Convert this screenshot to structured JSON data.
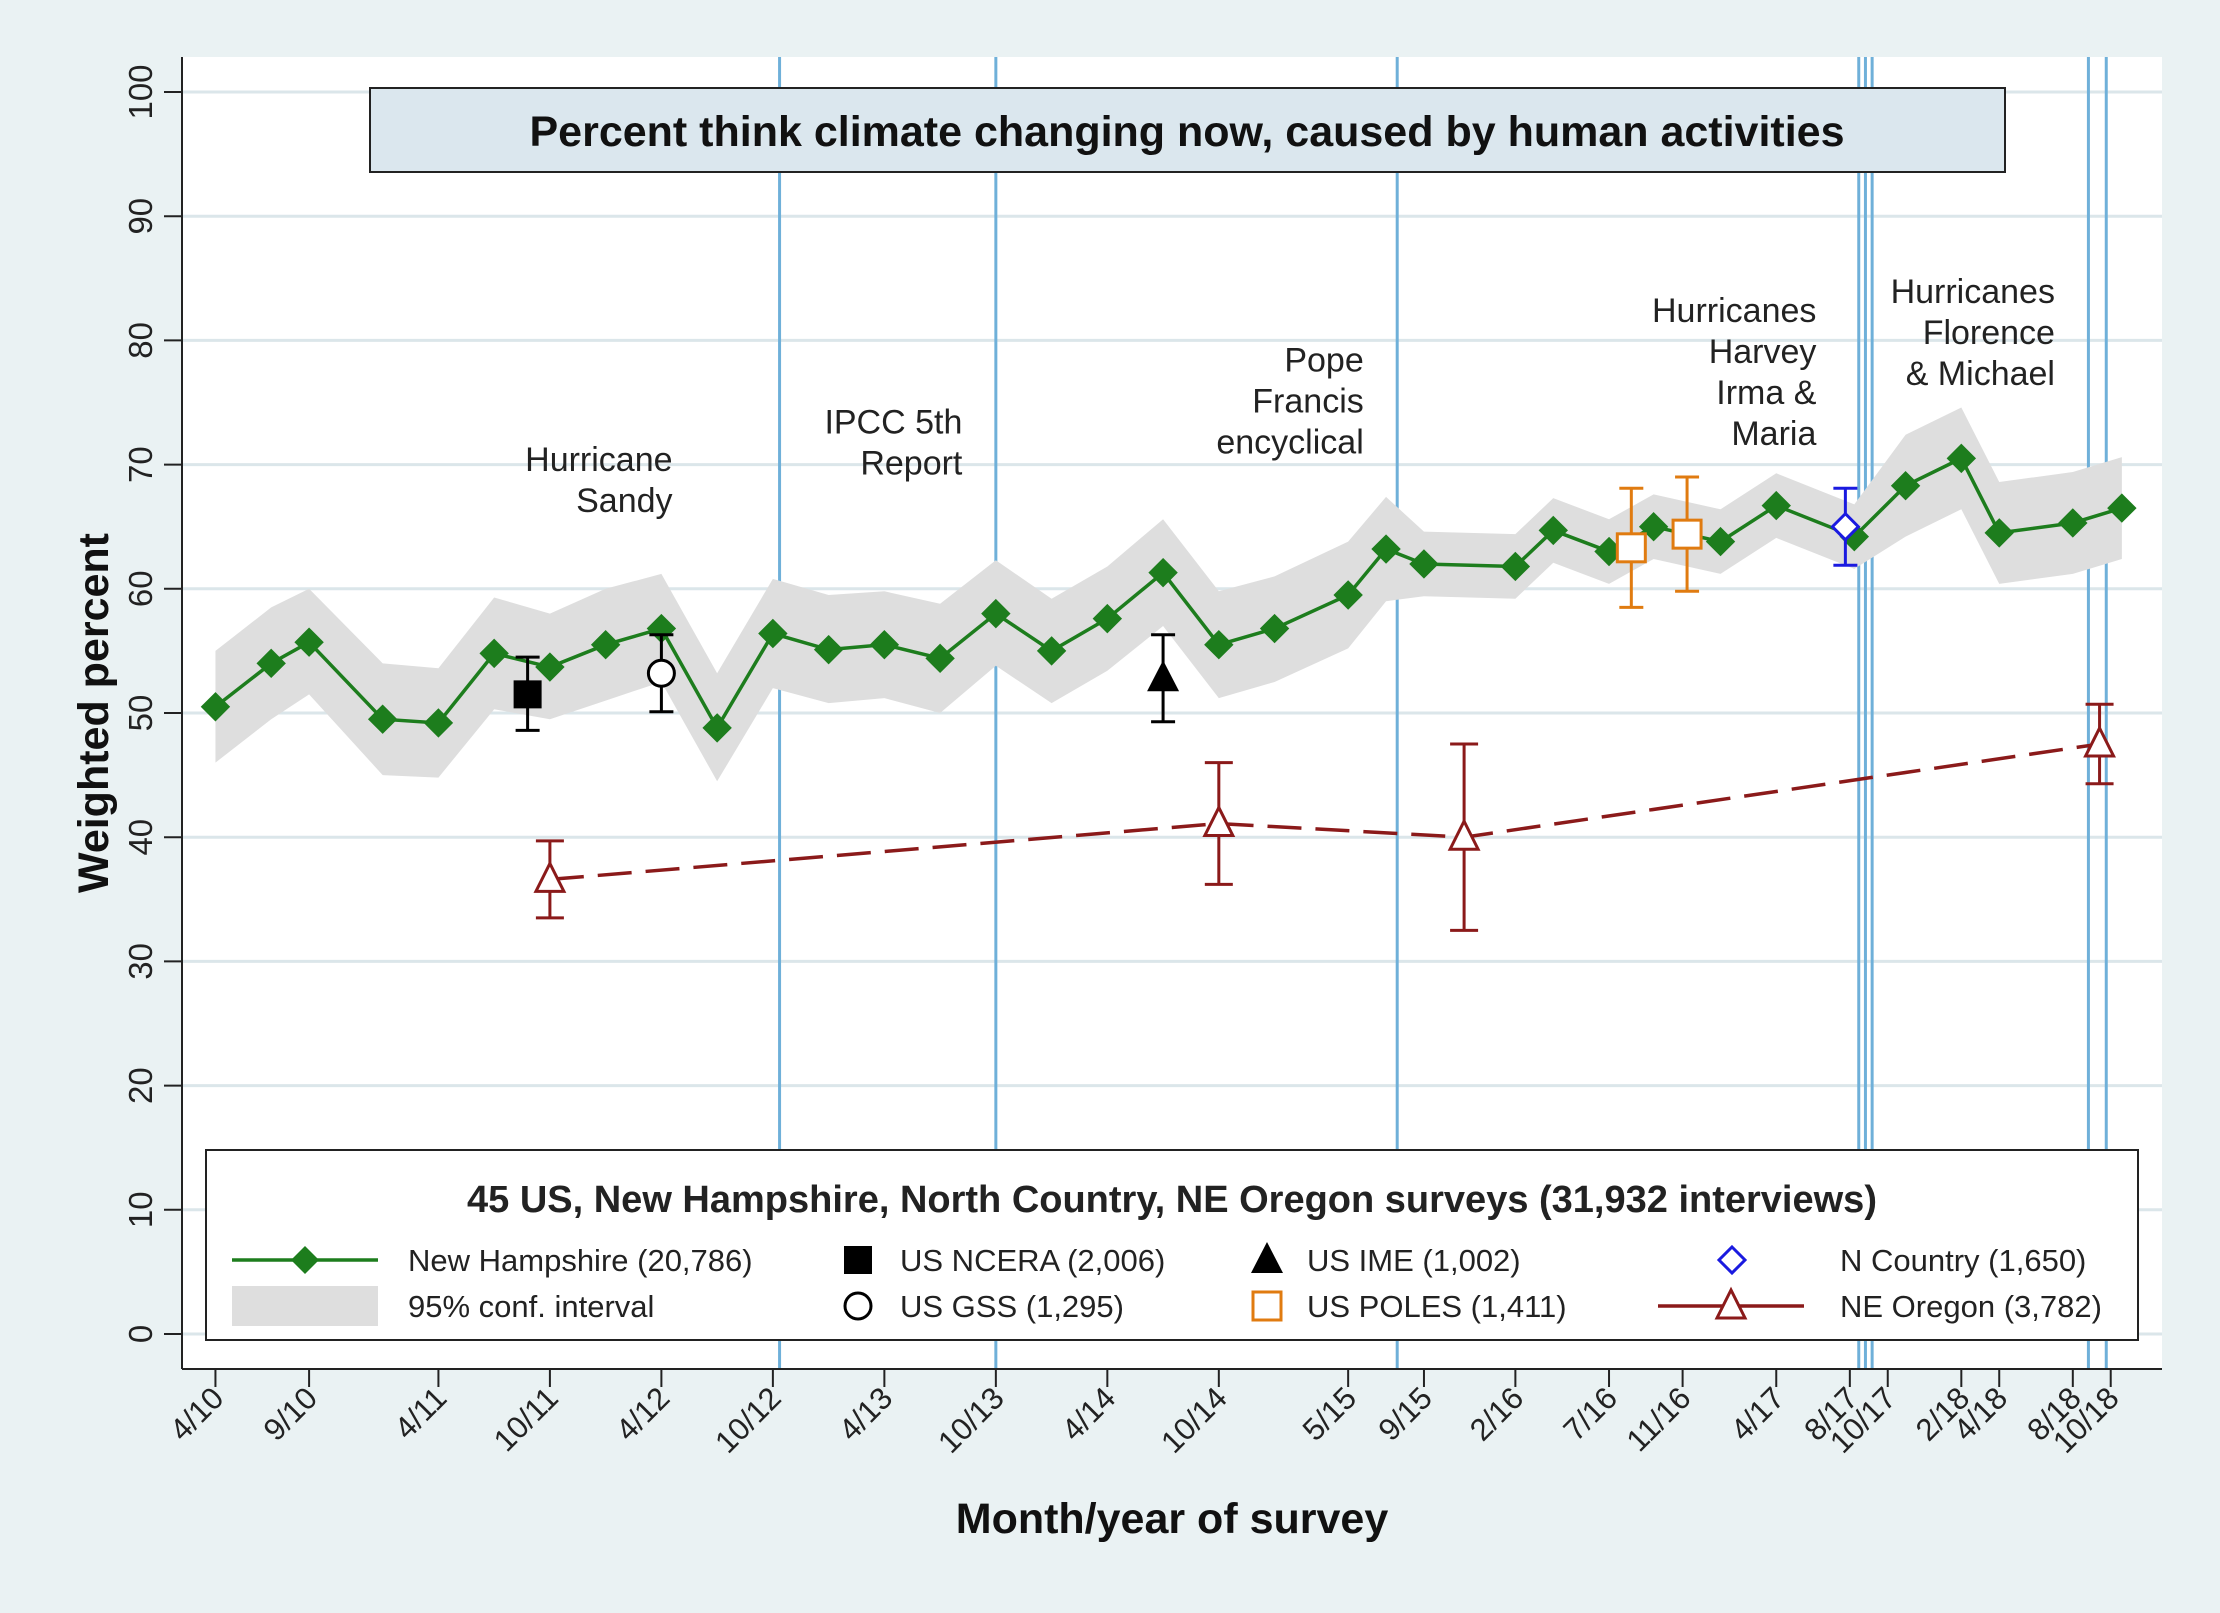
{
  "chart_data": {
    "type": "line",
    "title": "Percent think climate changing now, caused by human activities",
    "xlabel": "Month/year of survey",
    "ylabel": "Weighted percent",
    "ylim": [
      0,
      100
    ],
    "yticks": [
      0,
      10,
      20,
      30,
      40,
      50,
      60,
      70,
      80,
      90,
      100
    ],
    "xlim": [
      2010.1,
      2018.98
    ],
    "xticks": [
      {
        "label": "4/10",
        "x": 2010.25
      },
      {
        "label": "9/10",
        "x": 2010.67
      },
      {
        "label": "4/11",
        "x": 2011.25
      },
      {
        "label": "10/11",
        "x": 2011.75
      },
      {
        "label": "4/12",
        "x": 2012.25
      },
      {
        "label": "10/12",
        "x": 2012.75
      },
      {
        "label": "4/13",
        "x": 2013.25
      },
      {
        "label": "10/13",
        "x": 2013.75
      },
      {
        "label": "4/14",
        "x": 2014.25
      },
      {
        "label": "10/14",
        "x": 2014.75
      },
      {
        "label": "5/15",
        "x": 2015.33
      },
      {
        "label": "9/15",
        "x": 2015.67
      },
      {
        "label": "2/16",
        "x": 2016.08
      },
      {
        "label": "7/16",
        "x": 2016.5
      },
      {
        "label": "11/16",
        "x": 2016.83
      },
      {
        "label": "4/17",
        "x": 2017.25
      },
      {
        "label": "8/17",
        "x": 2017.58
      },
      {
        "label": "10/17",
        "x": 2017.75
      },
      {
        "label": "2/18",
        "x": 2018.08
      },
      {
        "label": "4/18",
        "x": 2018.25
      },
      {
        "label": "8/18",
        "x": 2018.58
      },
      {
        "label": "10/18",
        "x": 2018.75
      }
    ],
    "events": [
      {
        "x": 2012.78,
        "lines": [
          "Hurricane",
          "Sandy"
        ],
        "label_x": 2012.3,
        "label_y": 69.5,
        "align": "end"
      },
      {
        "x": 2013.75,
        "lines": [
          "IPCC 5th",
          "Report"
        ],
        "label_x": 2013.6,
        "label_y": 72.5,
        "align": "end"
      },
      {
        "x": 2015.55,
        "lines": [
          "Pope",
          "Francis",
          "encyclical"
        ],
        "label_x": 2015.4,
        "label_y": 77.5,
        "align": "end"
      },
      {
        "x": 2017.62,
        "lines": [
          "Hurricanes",
          "Harvey",
          "Irma &",
          "Maria"
        ],
        "label_x": 2017.43,
        "label_y": 81.5,
        "align": "end"
      },
      {
        "x": 2017.65,
        "lines": [],
        "label_x": null,
        "label_y": null,
        "align": "end"
      },
      {
        "x": 2017.68,
        "lines": [],
        "label_x": null,
        "label_y": null,
        "align": "end"
      },
      {
        "x": 2018.65,
        "lines": [
          "Hurricanes",
          "Florence",
          "& Michael"
        ],
        "label_x": 2018.5,
        "label_y": 83,
        "align": "end"
      },
      {
        "x": 2018.73,
        "lines": [],
        "label_x": null,
        "label_y": null,
        "align": "end"
      }
    ],
    "series": [
      {
        "name": "New Hampshire (20,786)",
        "color": "#1d7d1d",
        "marker": "diamond",
        "points": [
          [
            2010.25,
            50.5,
            46,
            55
          ],
          [
            2010.5,
            54,
            49.5,
            58.5
          ],
          [
            2010.67,
            55.7,
            51.5,
            60
          ],
          [
            2011.0,
            49.5,
            45,
            54
          ],
          [
            2011.25,
            49.2,
            44.8,
            53.6
          ],
          [
            2011.5,
            54.8,
            50.3,
            59.3
          ],
          [
            2011.75,
            53.7,
            49.5,
            58
          ],
          [
            2012.0,
            55.5,
            51,
            60
          ],
          [
            2012.25,
            56.8,
            52.5,
            61.2
          ],
          [
            2012.5,
            48.8,
            44.5,
            53.2
          ],
          [
            2012.75,
            56.4,
            52,
            60.8
          ],
          [
            2013.0,
            55.1,
            50.8,
            59.5
          ],
          [
            2013.25,
            55.5,
            51.2,
            59.8
          ],
          [
            2013.5,
            54.4,
            50,
            58.8
          ],
          [
            2013.75,
            58,
            53.8,
            62.3
          ],
          [
            2014.0,
            55,
            50.8,
            59.2
          ],
          [
            2014.25,
            57.6,
            53.4,
            61.8
          ],
          [
            2014.5,
            61.3,
            57,
            65.6
          ],
          [
            2014.75,
            55.5,
            51.2,
            59.8
          ],
          [
            2015.0,
            56.8,
            52.5,
            61
          ],
          [
            2015.33,
            59.5,
            55.2,
            63.8
          ],
          [
            2015.5,
            63.2,
            59,
            67.4
          ],
          [
            2015.67,
            62,
            59.4,
            64.6
          ],
          [
            2016.08,
            61.8,
            59.2,
            64.4
          ],
          [
            2016.25,
            64.7,
            62.1,
            67.3
          ],
          [
            2016.5,
            63,
            60.4,
            65.6
          ],
          [
            2016.7,
            65,
            62.4,
            67.6
          ],
          [
            2017.0,
            63.8,
            61.2,
            66.4
          ],
          [
            2017.25,
            66.7,
            64.1,
            69.3
          ],
          [
            2017.6,
            64.2,
            61.6,
            66.8
          ],
          [
            2017.83,
            68.3,
            64.2,
            72.4
          ],
          [
            2018.08,
            70.5,
            66.4,
            74.6
          ],
          [
            2018.25,
            64.5,
            60.4,
            68.6
          ],
          [
            2018.58,
            65.3,
            61.2,
            69.4
          ],
          [
            2018.8,
            66.5,
            62.4,
            70.6
          ]
        ]
      },
      {
        "name": "NE Oregon (3,782)",
        "color": "#8b1a1a",
        "marker": "triangle",
        "points": [
          [
            2011.75,
            36.6,
            33.5,
            39.7
          ],
          [
            2014.75,
            41.1,
            36.2,
            46
          ],
          [
            2015.85,
            40,
            32.5,
            47.5
          ],
          [
            2018.7,
            47.5,
            44.3,
            50.7
          ]
        ]
      }
    ],
    "us_points": [
      {
        "name": "US NCERA (2,006)",
        "marker": "square-filled",
        "color": "#000000",
        "x": 2011.65,
        "y": 51.5,
        "lo": 48.6,
        "hi": 54.5
      },
      {
        "name": "US GSS (1,295)",
        "marker": "circle-open",
        "color": "#000000",
        "x": 2012.25,
        "y": 53.2,
        "lo": 50.1,
        "hi": 56.3
      },
      {
        "name": "US IME (1,002)",
        "marker": "triangle-filled",
        "color": "#000000",
        "x": 2014.5,
        "y": 52.8,
        "lo": 49.3,
        "hi": 56.3
      },
      {
        "name": "US POLES (1,411)",
        "marker": "square-open",
        "color": "#e07b10",
        "x": 2016.6,
        "y": 63.3,
        "lo": 58.5,
        "hi": 68.1
      },
      {
        "name": "US POLES (1,411)",
        "marker": "square-open",
        "color": "#e07b10",
        "x": 2016.85,
        "y": 64.4,
        "lo": 59.8,
        "hi": 69
      },
      {
        "name": "N Country (1,650)",
        "marker": "diamond-open",
        "color": "#1a1ae0",
        "x": 2017.56,
        "y": 65,
        "lo": 61.9,
        "hi": 68.1
      }
    ],
    "legend": {
      "placement": "bottom",
      "title": "45 US, New Hampshire, North Country, NE Oregon surveys  (31,932 interviews)",
      "entries": [
        {
          "label": "New Hampshire (20,786)",
          "key": "nh-line"
        },
        {
          "label": "US NCERA (2,006)",
          "key": "square-filled"
        },
        {
          "label": "US IME (1,002)",
          "key": "triangle-filled"
        },
        {
          "label": "N Country (1,650)",
          "key": "diamond-open"
        },
        {
          "label": "95% conf. interval",
          "key": "ci-band"
        },
        {
          "label": "US GSS (1,295)",
          "key": "circle-open"
        },
        {
          "label": "US POLES (1,411)",
          "key": "square-open"
        },
        {
          "label": "NE Oregon (3,782)",
          "key": "oregon-line"
        }
      ]
    },
    "grid": true,
    "colors": {
      "background": "#eaf2f3",
      "plot": "#ffffff",
      "gridline": "#dbe6ea",
      "event_line": "#6fb0d9",
      "ci_band": "#dedede",
      "title_box": "#dbe7ee"
    }
  }
}
